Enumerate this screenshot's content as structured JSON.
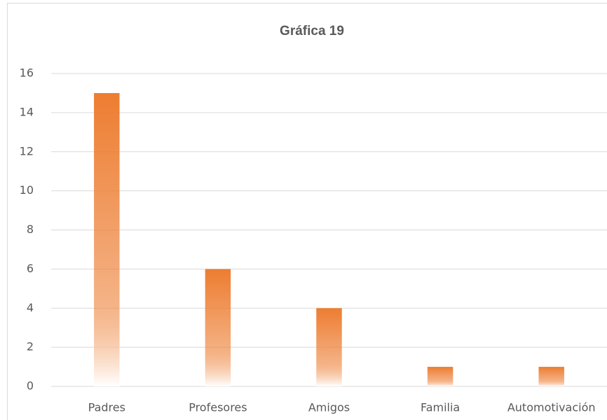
{
  "chart_data": {
    "type": "bar",
    "title": "Gráfica 19",
    "categories": [
      "Padres",
      "Profesores",
      "Amigos",
      "Familia",
      "Automotivación"
    ],
    "values": [
      15,
      6,
      4,
      1,
      1
    ],
    "color": "#ed7d31",
    "ylim": [
      0,
      16
    ],
    "yticks": [
      0,
      2,
      4,
      6,
      8,
      10,
      12,
      14,
      16
    ],
    "grid": true
  }
}
